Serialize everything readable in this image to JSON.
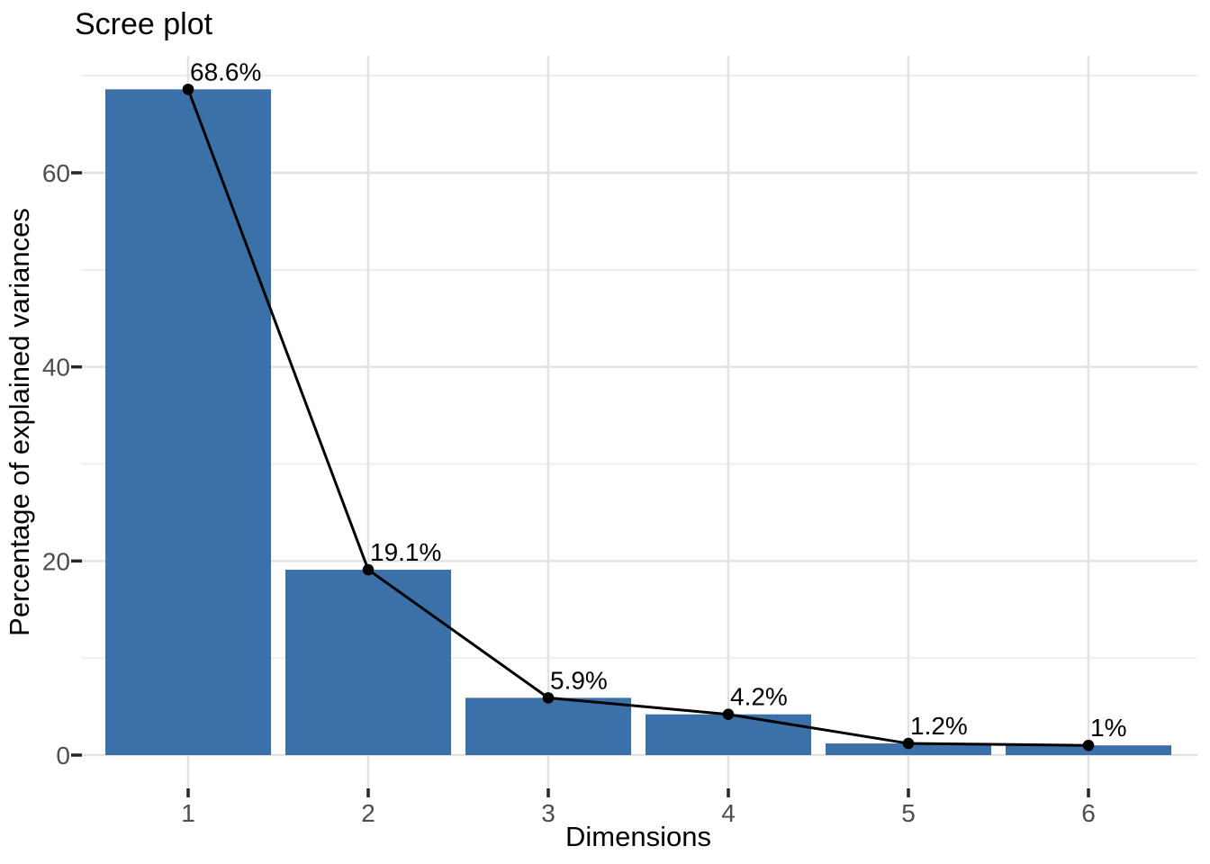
{
  "chart_data": {
    "type": "bar",
    "overlay": "line",
    "title": "Scree plot",
    "xlabel": "Dimensions",
    "ylabel": "Percentage of explained variances",
    "categories": [
      "1",
      "2",
      "3",
      "4",
      "5",
      "6"
    ],
    "values": [
      68.6,
      19.1,
      5.9,
      4.2,
      1.2,
      1
    ],
    "point_labels": [
      "68.6%",
      "19.1%",
      "5.9%",
      "4.2%",
      "1.2%",
      "1%"
    ],
    "y_ticks": [
      0,
      20,
      40,
      60
    ],
    "y_minor_gridlines": [
      10,
      30,
      50,
      70
    ],
    "ylim": [
      -3.4,
      72.1
    ],
    "grid": "on",
    "legend": "none",
    "colors": {
      "bar_fill": "#3B70A8",
      "line": "#000000",
      "point": "#000000",
      "grid_major": "#E2E2E2",
      "grid_minor": "#EFEFEF",
      "tick_mark": "#262626",
      "tick_label": "#4D4D4D",
      "title": "#000000",
      "background": "#FFFFFF"
    }
  }
}
